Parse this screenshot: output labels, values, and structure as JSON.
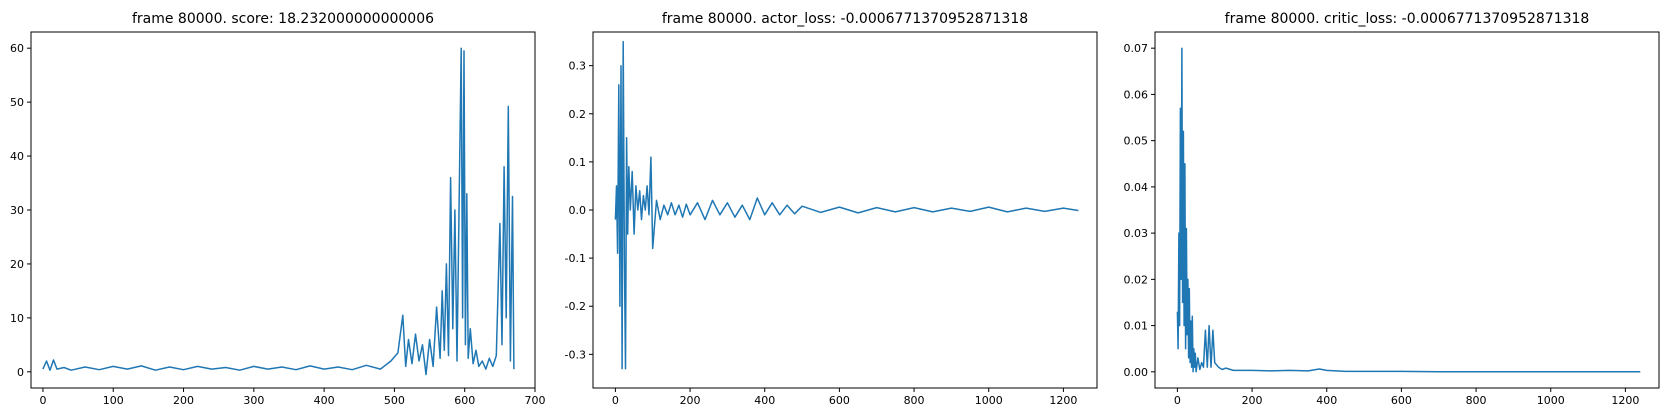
{
  "colors": {
    "series": "#1f77b4",
    "axes": "#000000",
    "background": "#ffffff"
  },
  "chart_data": [
    {
      "type": "line",
      "title": "frame 80000. score: 18.232000000000006",
      "xlabel": "",
      "ylabel": "",
      "xlim": [
        -17,
        700
      ],
      "ylim": [
        -3,
        63
      ],
      "xticks": [
        0,
        100,
        200,
        300,
        400,
        500,
        600,
        700
      ],
      "yticks": [
        0,
        10,
        20,
        30,
        40,
        50,
        60
      ],
      "grid": false,
      "series": [
        {
          "x": [
            0,
            5,
            10,
            15,
            20,
            30,
            40,
            60,
            80,
            100,
            120,
            140,
            160,
            180,
            200,
            220,
            240,
            260,
            280,
            300,
            320,
            340,
            360,
            380,
            400,
            420,
            440,
            460,
            480,
            495,
            505,
            512,
            516,
            520,
            525,
            530,
            535,
            540,
            545,
            550,
            555,
            560,
            565,
            568,
            571,
            574,
            577,
            580,
            583,
            586,
            589,
            592,
            595,
            597,
            599,
            601,
            603,
            605,
            608,
            612,
            616,
            620,
            625,
            630,
            635,
            640,
            645,
            650,
            653,
            656,
            659,
            662,
            665,
            668,
            670
          ],
          "y": [
            0.5,
            2.0,
            0.3,
            2.2,
            0.5,
            0.8,
            0.3,
            0.9,
            0.4,
            1.0,
            0.5,
            1.1,
            0.3,
            0.9,
            0.4,
            1.0,
            0.5,
            0.8,
            0.3,
            1.0,
            0.5,
            0.9,
            0.4,
            1.1,
            0.5,
            0.9,
            0.4,
            1.2,
            0.5,
            2.0,
            3.5,
            10.5,
            1.0,
            6.0,
            1.5,
            7.0,
            2.0,
            5.0,
            -0.5,
            6.0,
            1.0,
            12.0,
            2.5,
            15.0,
            4.0,
            20.0,
            3.0,
            36.0,
            8.0,
            30.0,
            2.0,
            31.0,
            60.0,
            10.0,
            59.5,
            5.0,
            33.0,
            2.5,
            8.0,
            1.5,
            4.0,
            1.0,
            2.0,
            0.5,
            2.5,
            1.0,
            3.0,
            27.5,
            5.0,
            38.0,
            10.0,
            49.2,
            2.0,
            32.5,
            0.5
          ]
        }
      ]
    },
    {
      "type": "line",
      "title": "frame 80000. actor_loss: -0.0006771370952871318",
      "xlabel": "",
      "ylabel": "",
      "xlim": [
        -60,
        1290
      ],
      "ylim": [
        -0.37,
        0.37
      ],
      "xticks": [
        0,
        200,
        400,
        600,
        800,
        1000,
        1200
      ],
      "yticks": [
        -0.3,
        -0.2,
        -0.1,
        0.0,
        0.1,
        0.2,
        0.3
      ],
      "grid": false,
      "series": [
        {
          "x": [
            0,
            3,
            6,
            9,
            12,
            15,
            18,
            21,
            24,
            27,
            30,
            33,
            36,
            40,
            45,
            50,
            55,
            60,
            65,
            70,
            75,
            80,
            85,
            90,
            95,
            100,
            110,
            120,
            130,
            140,
            150,
            160,
            170,
            180,
            190,
            200,
            220,
            240,
            260,
            280,
            300,
            320,
            340,
            360,
            380,
            400,
            420,
            440,
            460,
            480,
            500,
            550,
            600,
            650,
            700,
            750,
            800,
            850,
            900,
            950,
            1000,
            1050,
            1100,
            1150,
            1200,
            1240
          ],
          "y": [
            -0.02,
            0.05,
            -0.09,
            0.26,
            -0.2,
            0.3,
            -0.33,
            0.35,
            -0.1,
            -0.33,
            0.15,
            -0.05,
            0.09,
            0.0,
            0.08,
            -0.05,
            0.05,
            0.0,
            0.04,
            -0.02,
            0.03,
            0.0,
            0.05,
            -0.01,
            0.11,
            -0.08,
            0.02,
            -0.02,
            0.01,
            -0.01,
            0.015,
            -0.01,
            0.01,
            -0.015,
            0.012,
            -0.01,
            0.015,
            -0.02,
            0.02,
            -0.01,
            0.015,
            -0.015,
            0.01,
            -0.02,
            0.025,
            -0.01,
            0.015,
            -0.01,
            0.01,
            -0.008,
            0.008,
            -0.005,
            0.006,
            -0.006,
            0.005,
            -0.004,
            0.005,
            -0.004,
            0.004,
            -0.003,
            0.006,
            -0.004,
            0.004,
            -0.003,
            0.004,
            -0.001
          ]
        }
      ]
    },
    {
      "type": "line",
      "title": "frame 80000. critic_loss: -0.0006771370952871318",
      "xlabel": "",
      "ylabel": "",
      "xlim": [
        -60,
        1290
      ],
      "ylim": [
        -0.0035,
        0.0735
      ],
      "xticks": [
        0,
        200,
        400,
        600,
        800,
        1000,
        1200
      ],
      "yticks": [
        0.0,
        0.01,
        0.02,
        0.03,
        0.04,
        0.05,
        0.06,
        0.07
      ],
      "grid": false,
      "series": [
        {
          "x": [
            0,
            2,
            4,
            6,
            8,
            10,
            12,
            14,
            16,
            18,
            20,
            22,
            24,
            26,
            28,
            30,
            32,
            34,
            36,
            38,
            40,
            42,
            44,
            46,
            48,
            50,
            55,
            60,
            65,
            70,
            75,
            80,
            85,
            90,
            95,
            100,
            110,
            120,
            130,
            150,
            200,
            250,
            300,
            350,
            380,
            400,
            450,
            500,
            600,
            700,
            800,
            900,
            1000,
            1100,
            1200,
            1240
          ],
          "y": [
            0.013,
            0.005,
            0.03,
            0.01,
            0.057,
            0.02,
            0.07,
            0.015,
            0.052,
            0.01,
            0.045,
            0.005,
            0.031,
            0.008,
            0.02,
            0.003,
            0.018,
            0.002,
            0.011,
            0.001,
            0.012,
            0.0,
            0.005,
            0.001,
            0.004,
            0.0,
            0.003,
            0.0005,
            0.002,
            0.001,
            0.009,
            0.001,
            0.01,
            0.001,
            0.009,
            0.002,
            0.001,
            0.0005,
            0.0008,
            0.0003,
            0.0003,
            0.0002,
            0.0003,
            0.0002,
            0.0006,
            0.0003,
            0.0001,
            0.0001,
            0.0001,
            0.0,
            0.0,
            0.0,
            0.0,
            0.0,
            0.0,
            0.0
          ]
        }
      ]
    }
  ]
}
